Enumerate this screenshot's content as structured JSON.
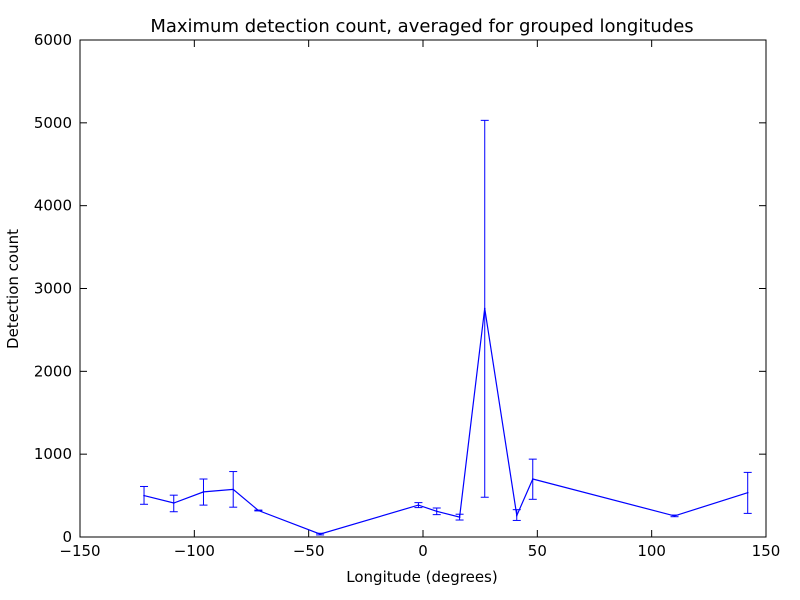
{
  "chart_data": {
    "type": "line",
    "title": "Maximum detection count, averaged for grouped longitudes",
    "xlabel": "Longitude (degrees)",
    "ylabel": "Detection count",
    "xlim": [
      -150,
      150
    ],
    "ylim": [
      0,
      6000
    ],
    "xticks": [
      -150,
      -100,
      -50,
      0,
      50,
      100,
      150
    ],
    "yticks": [
      0,
      1000,
      2000,
      3000,
      4000,
      5000,
      6000
    ],
    "xtick_labels": [
      "−150",
      "−100",
      "−50",
      "0",
      "50",
      "100",
      "150"
    ],
    "ytick_labels": [
      "0",
      "1000",
      "2000",
      "3000",
      "4000",
      "5000",
      "6000"
    ],
    "grid": false,
    "series_color": "#0000ff",
    "points": [
      {
        "x": -122,
        "y": 500,
        "lo": 395,
        "hi": 610
      },
      {
        "x": -109,
        "y": 410,
        "lo": 305,
        "hi": 505
      },
      {
        "x": -96,
        "y": 545,
        "lo": 385,
        "hi": 700
      },
      {
        "x": -83,
        "y": 575,
        "lo": 360,
        "hi": 790
      },
      {
        "x": -72,
        "y": 320,
        "lo": 315,
        "hi": 325
      },
      {
        "x": -45,
        "y": 35,
        "lo": 25,
        "hi": 45
      },
      {
        "x": -2,
        "y": 385,
        "lo": 355,
        "hi": 415
      },
      {
        "x": 6,
        "y": 310,
        "lo": 270,
        "hi": 350
      },
      {
        "x": 16,
        "y": 240,
        "lo": 205,
        "hi": 275
      },
      {
        "x": 27,
        "y": 2760,
        "lo": 480,
        "hi": 5030
      },
      {
        "x": 41,
        "y": 260,
        "lo": 200,
        "hi": 330
      },
      {
        "x": 48,
        "y": 700,
        "lo": 455,
        "hi": 940
      },
      {
        "x": 110,
        "y": 255,
        "lo": 245,
        "hi": 265
      },
      {
        "x": 142,
        "y": 535,
        "lo": 285,
        "hi": 780
      }
    ]
  }
}
